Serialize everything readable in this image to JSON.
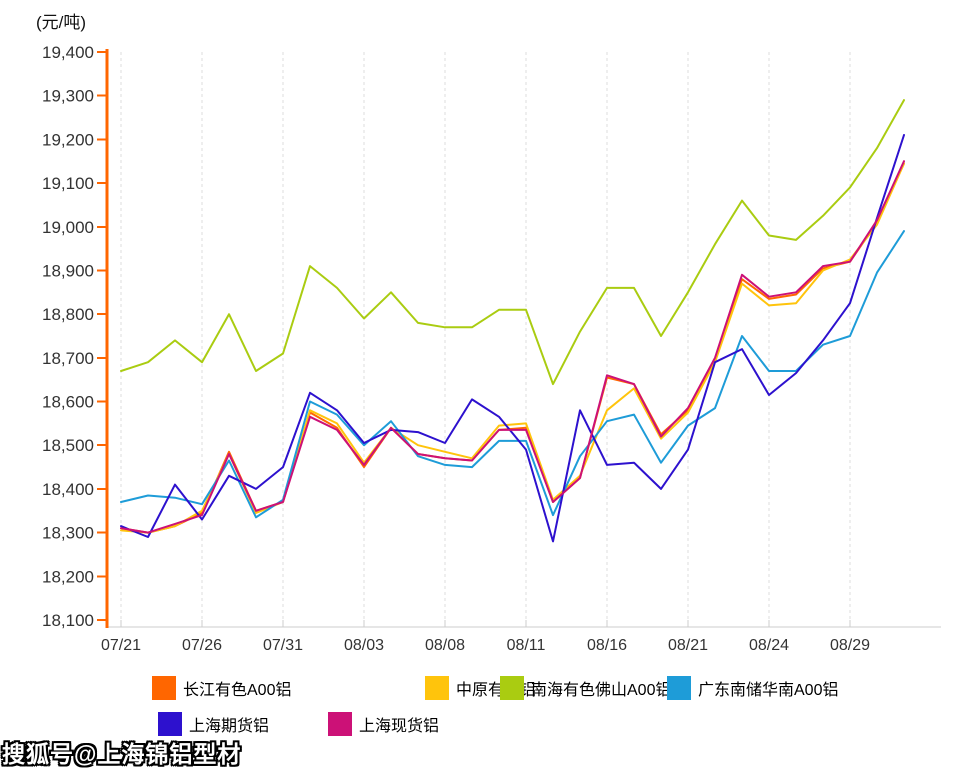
{
  "page": {
    "unit_title": "(元/吨)",
    "watermark": "搜狐号@上海锦铝型材"
  },
  "chart_data": {
    "type": "line",
    "title": "(元/吨)",
    "ylabel": "元/吨",
    "ylim": [
      18100,
      19400
    ],
    "ytick_step": 100,
    "grid": "vertical-dashed",
    "legend_position": "bottom",
    "axis_color": "#FF6600",
    "gridline_color": "#DDDDDD",
    "tick_text_color": "#333333",
    "x": [
      "07/21",
      "07/24",
      "07/25",
      "07/26",
      "07/27",
      "07/28",
      "07/31",
      "08/01",
      "08/02",
      "08/03",
      "08/04",
      "08/07",
      "08/08",
      "08/09",
      "08/10",
      "08/11",
      "08/14",
      "08/15",
      "08/16",
      "08/17",
      "08/18",
      "08/21",
      "08/22",
      "08/23",
      "08/24",
      "08/25",
      "08/28",
      "08/29",
      "08/30",
      "08/31"
    ],
    "x_tick_labels": [
      "07/21",
      "07/26",
      "07/31",
      "08/03",
      "08/08",
      "08/11",
      "08/16",
      "08/21",
      "08/24",
      "08/29"
    ],
    "x_tick_indices": [
      0,
      3,
      6,
      9,
      12,
      15,
      18,
      21,
      24,
      27
    ],
    "legend_rows": [
      [
        0,
        1,
        2,
        3
      ],
      [
        4,
        5
      ]
    ],
    "series": [
      {
        "name": "长江有色A00铝",
        "color": "#FF6600",
        "values": [
          18310,
          18300,
          18315,
          18345,
          18485,
          18350,
          18370,
          18575,
          18540,
          18450,
          18540,
          18480,
          18470,
          18465,
          18535,
          18540,
          18370,
          18425,
          18655,
          18640,
          18525,
          18580,
          18695,
          18880,
          18835,
          18845,
          18905,
          18920,
          19010,
          19145
        ]
      },
      {
        "name": "中原有色铝",
        "color": "#FFC40C",
        "values": [
          18305,
          18300,
          18315,
          18350,
          18480,
          18345,
          18370,
          18580,
          18550,
          18460,
          18540,
          18500,
          18485,
          18470,
          18545,
          18550,
          18375,
          18430,
          18580,
          18630,
          18515,
          18575,
          18690,
          18870,
          18820,
          18825,
          18900,
          18925,
          19005,
          19145
        ]
      },
      {
        "name": "南海有色佛山A00铝",
        "color": "#AACC11",
        "values": [
          18670,
          18690,
          18740,
          18690,
          18800,
          18670,
          18710,
          18910,
          18860,
          18790,
          18850,
          18780,
          18770,
          18770,
          18810,
          18810,
          18640,
          18760,
          18860,
          18860,
          18750,
          18850,
          18960,
          19060,
          18980,
          18970,
          19025,
          19090,
          19180,
          19290
        ]
      },
      {
        "name": "广东南储华南A00铝",
        "color": "#1E9CD8",
        "values": [
          18370,
          18385,
          18380,
          18365,
          18465,
          18335,
          18375,
          18600,
          18570,
          18500,
          18555,
          18475,
          18455,
          18450,
          18510,
          18510,
          18340,
          18475,
          18555,
          18570,
          18460,
          18545,
          18585,
          18750,
          18670,
          18670,
          18730,
          18750,
          18895,
          18990
        ]
      },
      {
        "name": "上海期货铝",
        "color": "#2D11CE",
        "values": [
          18315,
          18290,
          18410,
          18330,
          18430,
          18400,
          18450,
          18620,
          18580,
          18505,
          18535,
          18530,
          18505,
          18605,
          18565,
          18490,
          18280,
          18580,
          18455,
          18460,
          18400,
          18490,
          18690,
          18720,
          18615,
          18665,
          18740,
          18825,
          19020,
          19210
        ]
      },
      {
        "name": "上海现货铝",
        "color": "#CC1177",
        "values": [
          18310,
          18300,
          18320,
          18340,
          18480,
          18350,
          18370,
          18565,
          18535,
          18455,
          18540,
          18480,
          18470,
          18465,
          18535,
          18535,
          18370,
          18425,
          18660,
          18640,
          18520,
          18585,
          18700,
          18890,
          18840,
          18850,
          18910,
          18920,
          19015,
          19150
        ]
      }
    ]
  }
}
